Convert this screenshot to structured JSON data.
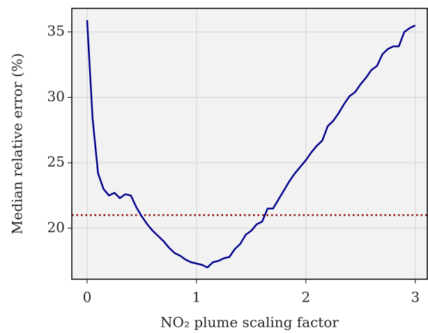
{
  "chart_data": {
    "type": "line",
    "xlabel": "NO₂ plume scaling factor",
    "ylabel": "Median relative error (%)",
    "x": [
      0,
      0.05,
      0.1,
      0.15,
      0.2,
      0.25,
      0.3,
      0.35,
      0.4,
      0.45,
      0.5,
      0.55,
      0.6,
      0.65,
      0.7,
      0.75,
      0.8,
      0.85,
      0.9,
      0.95,
      1,
      1.05,
      1.1,
      1.15,
      1.2,
      1.25,
      1.3,
      1.35,
      1.4,
      1.45,
      1.5,
      1.55,
      1.6,
      1.65,
      1.7,
      1.75,
      1.8,
      1.85,
      1.9,
      1.95,
      2,
      2.05,
      2.1,
      2.15,
      2.2,
      2.25,
      2.3,
      2.35,
      2.4,
      2.45,
      2.5,
      2.55,
      2.6,
      2.65,
      2.7,
      2.75,
      2.8,
      2.85,
      2.9,
      2.95,
      3
    ],
    "series": [
      {
        "name": "Median relative error",
        "color": "#00008b",
        "values": [
          35.9,
          28.4,
          24.2,
          23.0,
          22.5,
          22.7,
          22.3,
          22.6,
          22.5,
          21.6,
          20.9,
          20.3,
          19.8,
          19.4,
          19.0,
          18.5,
          18.1,
          17.9,
          17.6,
          17.4,
          17.3,
          17.2,
          17.0,
          17.4,
          17.5,
          17.7,
          17.8,
          18.4,
          18.8,
          19.5,
          19.8,
          20.3,
          20.5,
          21.5,
          21.5,
          22.2,
          22.9,
          23.6,
          24.2,
          24.7,
          25.2,
          25.8,
          26.3,
          26.7,
          27.8,
          28.2,
          28.8,
          29.5,
          30.1,
          30.4,
          31.0,
          31.5,
          32.1,
          32.4,
          33.3,
          33.7,
          33.9,
          33.9,
          35.0,
          35.3,
          35.5
        ]
      }
    ],
    "hline": {
      "value": 21,
      "color": "#8b0000",
      "style": "dotted"
    },
    "xlim": [
      -0.14,
      3.11
    ],
    "ylim": [
      16.1,
      36.8
    ],
    "xticks": [
      0,
      1,
      2,
      3
    ],
    "yticks": [
      20,
      25,
      30,
      35
    ],
    "grid": true
  }
}
